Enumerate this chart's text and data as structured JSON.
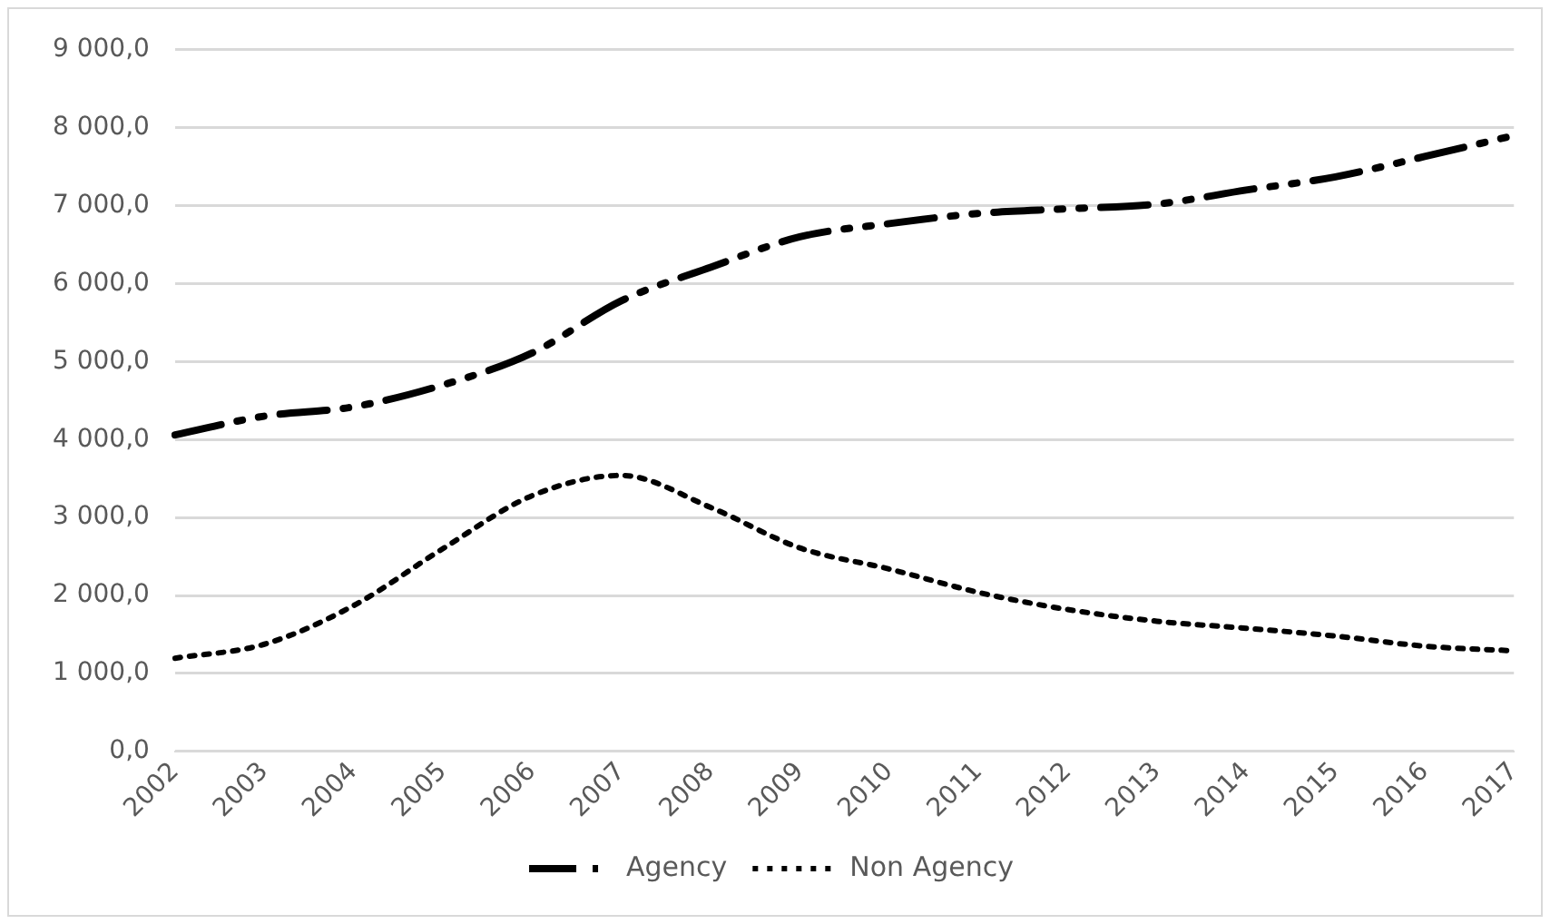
{
  "chart_data": {
    "type": "line",
    "categories": [
      "2002",
      "2003",
      "2004",
      "2005",
      "2006",
      "2007",
      "2008",
      "2009",
      "2010",
      "2011",
      "2012",
      "2013",
      "2014",
      "2015",
      "2016",
      "2017"
    ],
    "series": [
      {
        "name": "Agency",
        "color": "#000000",
        "line_style": "dashed",
        "values": [
          4060,
          4300,
          4420,
          4700,
          5110,
          5780,
          6210,
          6600,
          6770,
          6900,
          6960,
          7020,
          7200,
          7370,
          7630,
          7900
        ]
      },
      {
        "name": "Non Agency",
        "color": "#000000",
        "line_style": "dotted",
        "values": [
          1195,
          1375,
          1870,
          2600,
          3280,
          3540,
          3130,
          2610,
          2340,
          2040,
          1820,
          1670,
          1580,
          1480,
          1350,
          1290
        ]
      }
    ],
    "ylim": [
      0,
      9000
    ],
    "yticks": [
      {
        "value": 0,
        "label": "0,0"
      },
      {
        "value": 1000,
        "label": "1 000,0"
      },
      {
        "value": 2000,
        "label": "2 000,0"
      },
      {
        "value": 3000,
        "label": "3 000,0"
      },
      {
        "value": 4000,
        "label": "4 000,0"
      },
      {
        "value": 5000,
        "label": "5 000,0"
      },
      {
        "value": 6000,
        "label": "6 000,0"
      },
      {
        "value": 7000,
        "label": "7 000,0"
      },
      {
        "value": 8000,
        "label": "8 000,0"
      },
      {
        "value": 9000,
        "label": "9 000,0"
      }
    ],
    "grid": "y",
    "legend": "bottom",
    "marker": "none"
  }
}
